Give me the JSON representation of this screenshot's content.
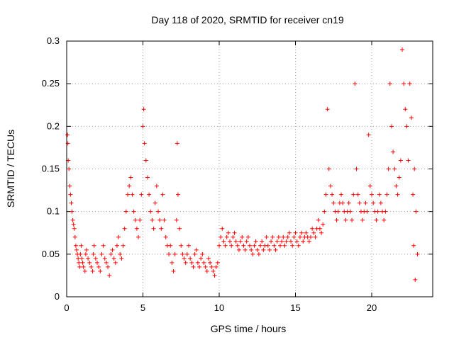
{
  "chart_data": {
    "type": "scatter",
    "title": "Day 118 of 2020, SRMTID for receiver cn19",
    "xlabel": "GPS time / hours",
    "ylabel": "SRMTID / TECUs",
    "xlim": [
      0,
      24
    ],
    "ylim": [
      0,
      0.3
    ],
    "xticks": [
      0,
      5,
      10,
      15,
      20
    ],
    "xtick_labels": [
      "0",
      "5",
      "10",
      "15",
      "20"
    ],
    "yticks": [
      0,
      0.05,
      0.1,
      0.15,
      0.2,
      0.25,
      0.3
    ],
    "ytick_labels": [
      "0",
      "0.05",
      "0.1",
      "0.15",
      "0.2",
      "0.25",
      "0.3"
    ],
    "grid": true,
    "marker": "+",
    "color": "#ff0000",
    "series": [
      {
        "name": "SRMTID",
        "points": [
          [
            0.05,
            0.19
          ],
          [
            0.08,
            0.18
          ],
          [
            0.1,
            0.16
          ],
          [
            0.15,
            0.15
          ],
          [
            0.2,
            0.13
          ],
          [
            0.25,
            0.12
          ],
          [
            0.3,
            0.11
          ],
          [
            0.35,
            0.1
          ],
          [
            0.4,
            0.09
          ],
          [
            0.45,
            0.085
          ],
          [
            0.5,
            0.08
          ],
          [
            0.55,
            0.07
          ],
          [
            0.6,
            0.06
          ],
          [
            0.65,
            0.055
          ],
          [
            0.7,
            0.05
          ],
          [
            0.75,
            0.045
          ],
          [
            0.8,
            0.04
          ],
          [
            0.85,
            0.035
          ],
          [
            0.9,
            0.05
          ],
          [
            0.95,
            0.06
          ],
          [
            1.0,
            0.045
          ],
          [
            1.05,
            0.04
          ],
          [
            1.1,
            0.035
          ],
          [
            1.2,
            0.03
          ],
          [
            1.25,
            0.05
          ],
          [
            1.3,
            0.055
          ],
          [
            1.4,
            0.045
          ],
          [
            1.5,
            0.04
          ],
          [
            1.6,
            0.035
          ],
          [
            1.7,
            0.03
          ],
          [
            1.75,
            0.05
          ],
          [
            1.8,
            0.06
          ],
          [
            1.9,
            0.045
          ],
          [
            2.0,
            0.04
          ],
          [
            2.1,
            0.035
          ],
          [
            2.2,
            0.03
          ],
          [
            2.3,
            0.05
          ],
          [
            2.4,
            0.06
          ],
          [
            2.5,
            0.045
          ],
          [
            2.6,
            0.04
          ],
          [
            2.7,
            0.035
          ],
          [
            2.8,
            0.025
          ],
          [
            2.9,
            0.05
          ],
          [
            3.0,
            0.055
          ],
          [
            3.1,
            0.045
          ],
          [
            3.2,
            0.04
          ],
          [
            3.3,
            0.06
          ],
          [
            3.4,
            0.07
          ],
          [
            3.5,
            0.05
          ],
          [
            3.6,
            0.045
          ],
          [
            3.7,
            0.06
          ],
          [
            3.8,
            0.08
          ],
          [
            3.9,
            0.1
          ],
          [
            4.0,
            0.12
          ],
          [
            4.1,
            0.13
          ],
          [
            4.2,
            0.14
          ],
          [
            4.3,
            0.12
          ],
          [
            4.4,
            0.1
          ],
          [
            4.5,
            0.09
          ],
          [
            4.6,
            0.08
          ],
          [
            4.7,
            0.07
          ],
          [
            4.8,
            0.09
          ],
          [
            4.9,
            0.12
          ],
          [
            5.0,
            0.2
          ],
          [
            5.05,
            0.22
          ],
          [
            5.1,
            0.18
          ],
          [
            5.2,
            0.16
          ],
          [
            5.3,
            0.14
          ],
          [
            5.4,
            0.12
          ],
          [
            5.5,
            0.1
          ],
          [
            5.6,
            0.09
          ],
          [
            5.7,
            0.08
          ],
          [
            5.8,
            0.11
          ],
          [
            5.9,
            0.13
          ],
          [
            6.0,
            0.1
          ],
          [
            6.1,
            0.09
          ],
          [
            6.2,
            0.08
          ],
          [
            6.3,
            0.12
          ],
          [
            6.4,
            0.09
          ],
          [
            6.5,
            0.07
          ],
          [
            6.6,
            0.06
          ],
          [
            6.7,
            0.05
          ],
          [
            6.8,
            0.06
          ],
          [
            6.9,
            0.04
          ],
          [
            7.0,
            0.03
          ],
          [
            7.1,
            0.05
          ],
          [
            7.2,
            0.09
          ],
          [
            7.25,
            0.18
          ],
          [
            7.3,
            0.12
          ],
          [
            7.4,
            0.08
          ],
          [
            7.5,
            0.06
          ],
          [
            7.6,
            0.05
          ],
          [
            7.7,
            0.045
          ],
          [
            7.8,
            0.04
          ],
          [
            7.9,
            0.05
          ],
          [
            8.0,
            0.06
          ],
          [
            8.1,
            0.045
          ],
          [
            8.2,
            0.04
          ],
          [
            8.3,
            0.035
          ],
          [
            8.4,
            0.05
          ],
          [
            8.5,
            0.055
          ],
          [
            8.6,
            0.04
          ],
          [
            8.7,
            0.035
          ],
          [
            8.8,
            0.045
          ],
          [
            8.9,
            0.05
          ],
          [
            9.0,
            0.04
          ],
          [
            9.1,
            0.035
          ],
          [
            9.2,
            0.03
          ],
          [
            9.3,
            0.045
          ],
          [
            9.4,
            0.04
          ],
          [
            9.5,
            0.035
          ],
          [
            9.6,
            0.03
          ],
          [
            9.7,
            0.025
          ],
          [
            9.8,
            0.035
          ],
          [
            9.9,
            0.04
          ],
          [
            10.0,
            0.06
          ],
          [
            10.1,
            0.07
          ],
          [
            10.2,
            0.08
          ],
          [
            10.3,
            0.065
          ],
          [
            10.4,
            0.06
          ],
          [
            10.5,
            0.07
          ],
          [
            10.6,
            0.075
          ],
          [
            10.7,
            0.065
          ],
          [
            10.8,
            0.06
          ],
          [
            10.9,
            0.07
          ],
          [
            11.0,
            0.075
          ],
          [
            11.1,
            0.065
          ],
          [
            11.2,
            0.06
          ],
          [
            11.3,
            0.055
          ],
          [
            11.4,
            0.065
          ],
          [
            11.5,
            0.07
          ],
          [
            11.6,
            0.06
          ],
          [
            11.7,
            0.055
          ],
          [
            11.8,
            0.065
          ],
          [
            11.9,
            0.07
          ],
          [
            12.0,
            0.06
          ],
          [
            12.1,
            0.055
          ],
          [
            12.2,
            0.05
          ],
          [
            12.3,
            0.06
          ],
          [
            12.4,
            0.065
          ],
          [
            12.5,
            0.055
          ],
          [
            12.6,
            0.05
          ],
          [
            12.7,
            0.06
          ],
          [
            12.8,
            0.065
          ],
          [
            12.9,
            0.055
          ],
          [
            13.0,
            0.06
          ],
          [
            13.1,
            0.07
          ],
          [
            13.2,
            0.06
          ],
          [
            13.3,
            0.055
          ],
          [
            13.4,
            0.065
          ],
          [
            13.5,
            0.07
          ],
          [
            13.6,
            0.06
          ],
          [
            13.7,
            0.055
          ],
          [
            13.8,
            0.065
          ],
          [
            13.9,
            0.07
          ],
          [
            14.0,
            0.06
          ],
          [
            14.1,
            0.065
          ],
          [
            14.2,
            0.07
          ],
          [
            14.3,
            0.06
          ],
          [
            14.4,
            0.065
          ],
          [
            14.5,
            0.07
          ],
          [
            14.6,
            0.075
          ],
          [
            14.7,
            0.065
          ],
          [
            14.8,
            0.06
          ],
          [
            14.9,
            0.07
          ],
          [
            15.0,
            0.075
          ],
          [
            15.1,
            0.065
          ],
          [
            15.2,
            0.06
          ],
          [
            15.3,
            0.07
          ],
          [
            15.4,
            0.075
          ],
          [
            15.5,
            0.065
          ],
          [
            15.6,
            0.07
          ],
          [
            15.7,
            0.075
          ],
          [
            15.8,
            0.07
          ],
          [
            15.9,
            0.065
          ],
          [
            16.0,
            0.07
          ],
          [
            16.1,
            0.08
          ],
          [
            16.2,
            0.075
          ],
          [
            16.3,
            0.07
          ],
          [
            16.4,
            0.08
          ],
          [
            16.5,
            0.09
          ],
          [
            16.6,
            0.08
          ],
          [
            16.7,
            0.075
          ],
          [
            16.8,
            0.085
          ],
          [
            16.9,
            0.1
          ],
          [
            17.0,
            0.12
          ],
          [
            17.1,
            0.22
          ],
          [
            17.2,
            0.15
          ],
          [
            17.3,
            0.13
          ],
          [
            17.4,
            0.12
          ],
          [
            17.5,
            0.11
          ],
          [
            17.6,
            0.1
          ],
          [
            17.7,
            0.09
          ],
          [
            17.8,
            0.1
          ],
          [
            17.9,
            0.11
          ],
          [
            18.0,
            0.12
          ],
          [
            18.1,
            0.11
          ],
          [
            18.2,
            0.1
          ],
          [
            18.3,
            0.09
          ],
          [
            18.4,
            0.1
          ],
          [
            18.5,
            0.11
          ],
          [
            18.6,
            0.1
          ],
          [
            18.7,
            0.09
          ],
          [
            18.8,
            0.12
          ],
          [
            18.9,
            0.25
          ],
          [
            19.0,
            0.15
          ],
          [
            19.1,
            0.12
          ],
          [
            19.2,
            0.11
          ],
          [
            19.3,
            0.1
          ],
          [
            19.4,
            0.09
          ],
          [
            19.5,
            0.1
          ],
          [
            19.6,
            0.11
          ],
          [
            19.7,
            0.1
          ],
          [
            19.8,
            0.19
          ],
          [
            19.9,
            0.13
          ],
          [
            20.0,
            0.12
          ],
          [
            20.1,
            0.11
          ],
          [
            20.2,
            0.1
          ],
          [
            20.3,
            0.09
          ],
          [
            20.4,
            0.1
          ],
          [
            20.5,
            0.12
          ],
          [
            20.6,
            0.11
          ],
          [
            20.7,
            0.1
          ],
          [
            20.8,
            0.09
          ],
          [
            20.9,
            0.1
          ],
          [
            21.0,
            0.12
          ],
          [
            21.1,
            0.15
          ],
          [
            21.2,
            0.25
          ],
          [
            21.3,
            0.2
          ],
          [
            21.4,
            0.17
          ],
          [
            21.5,
            0.15
          ],
          [
            21.6,
            0.13
          ],
          [
            21.7,
            0.12
          ],
          [
            21.8,
            0.14
          ],
          [
            21.9,
            0.16
          ],
          [
            22.0,
            0.29
          ],
          [
            22.1,
            0.25
          ],
          [
            22.2,
            0.22
          ],
          [
            22.3,
            0.2
          ],
          [
            22.4,
            0.16
          ],
          [
            22.5,
            0.25
          ],
          [
            22.6,
            0.21
          ],
          [
            22.7,
            0.12
          ],
          [
            22.75,
            0.06
          ],
          [
            22.8,
            0.15
          ],
          [
            22.85,
            0.02
          ],
          [
            22.9,
            0.1
          ],
          [
            23.0,
            0.05
          ]
        ]
      }
    ]
  }
}
